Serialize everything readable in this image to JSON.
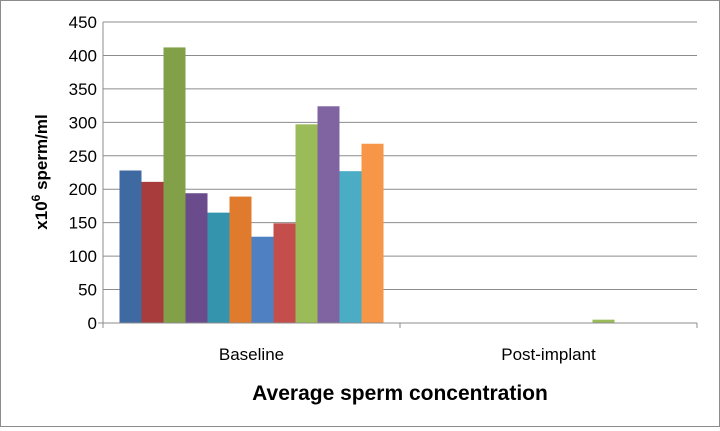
{
  "chart_data": {
    "type": "bar",
    "title": "",
    "xlabel": "Average sperm concentration",
    "ylabel": "x10",
    "ylabel_superscript": "6",
    "ylabel_suffix": " sperm/ml",
    "ylim": [
      0,
      450
    ],
    "yticks": [
      "0",
      "50",
      "100",
      "150",
      "200",
      "250",
      "300",
      "350",
      "400",
      "450"
    ],
    "grid": true,
    "legend": "none",
    "categories": [
      "Baseline",
      "Post-implant"
    ],
    "series": [
      {
        "color": "#3E6AA1",
        "values": [
          228,
          0
        ]
      },
      {
        "color": "#A83B3B",
        "values": [
          211,
          0
        ]
      },
      {
        "color": "#82A047",
        "values": [
          412,
          0
        ]
      },
      {
        "color": "#6A4B8C",
        "values": [
          194,
          0
        ]
      },
      {
        "color": "#3494AD",
        "values": [
          165,
          0
        ]
      },
      {
        "color": "#E07B2E",
        "values": [
          189,
          0
        ]
      },
      {
        "color": "#4F81C2",
        "values": [
          129,
          0
        ]
      },
      {
        "color": "#C44E4C",
        "values": [
          149,
          0
        ]
      },
      {
        "color": "#9BBB59",
        "values": [
          297,
          5
        ]
      },
      {
        "color": "#8064A2",
        "values": [
          324,
          0
        ]
      },
      {
        "color": "#4BACC6",
        "values": [
          227,
          0
        ]
      },
      {
        "color": "#F79646",
        "values": [
          268,
          0
        ]
      }
    ]
  }
}
